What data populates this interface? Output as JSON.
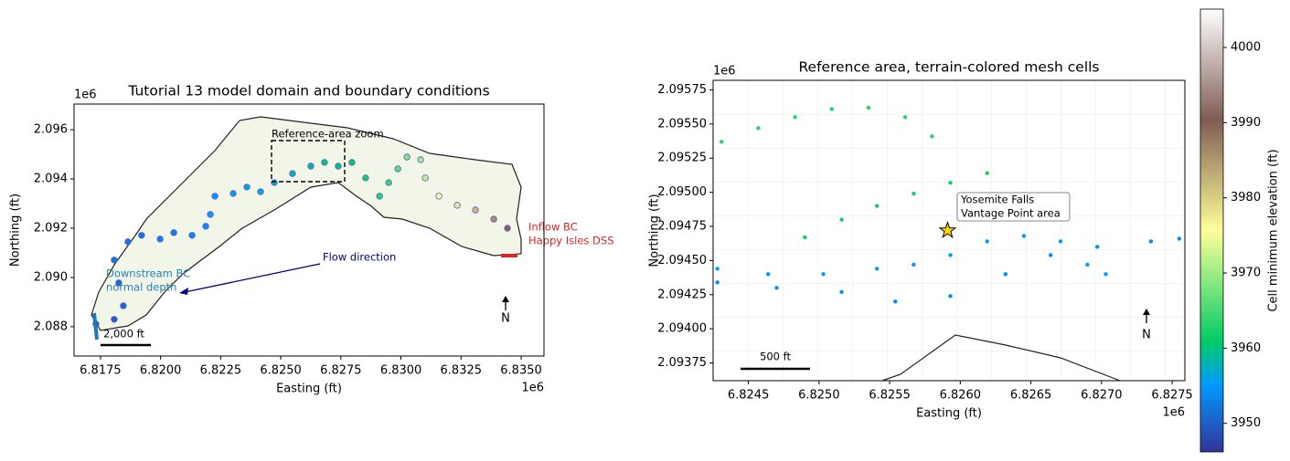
{
  "chart_data": [
    {
      "type": "scatter",
      "title": "Tutorial 13 model domain and boundary conditions",
      "xlabel": "Easting (ft)",
      "ylabel": "Northing (ft)",
      "x_offset_label": "1e6",
      "y_offset_label": "1e6",
      "xlim": [
        6.8164,
        6.83595
      ],
      "ylim": [
        2.08681,
        2.09704
      ],
      "xticks": [
        6.8175,
        {
          "value": 6.82,
          "label": "6.8200"
        },
        6.8225,
        {
          "value": 6.825,
          "label": "6.8250"
        },
        6.8275,
        {
          "value": 6.83,
          "label": "6.8300"
        },
        6.8325,
        {
          "value": 6.835,
          "label": "6.8350"
        }
      ],
      "yticks": [
        2.088,
        {
          "value": 2.09,
          "label": "2.090"
        },
        2.092,
        2.094,
        2.096
      ],
      "series": [
        {
          "x": [
            6.81731,
            6.81807,
            6.81845,
            6.81826,
            6.81807,
            6.81864,
            6.81921,
            6.81998,
            6.82055,
            6.82131,
            6.82188,
            6.82207,
            6.82226,
            6.82302,
            6.82359,
            6.82416,
            6.82473,
            6.82549,
            6.82625,
            6.82682,
            6.82739,
            6.82796,
            6.82853,
            6.82911,
            6.82949,
            6.82987,
            6.83025,
            6.83082,
            6.83101,
            6.83158,
            6.83234,
            6.8331,
            6.83386,
            6.83443
          ],
          "y": [
            2.08811,
            2.0883,
            2.08885,
            2.08978,
            2.09071,
            2.09145,
            2.09171,
            2.09156,
            2.09182,
            2.09171,
            2.09208,
            2.09256,
            2.0933,
            2.09341,
            2.09367,
            2.09348,
            2.09385,
            2.09422,
            2.09452,
            2.09467,
            2.09452,
            2.09467,
            2.09404,
            2.0933,
            2.09385,
            2.09441,
            2.09489,
            2.09478,
            2.09404,
            2.0933,
            2.09293,
            2.09274,
            2.09237,
            2.092
          ],
          "elevation": [
            3950,
            3950,
            3951,
            3951,
            3952,
            3952,
            3952,
            3953,
            3953,
            3954,
            3954,
            3955,
            3955,
            3956,
            3956,
            3957,
            3958,
            3958,
            3959,
            3960,
            3960,
            3961,
            3962,
            3963,
            3964,
            3966,
            3968,
            3970,
            3972,
            3975,
            3978,
            3982,
            3986,
            3990
          ]
        }
      ],
      "annotations": {
        "zoom": "Reference-area zoom",
        "flow": "Flow direction",
        "downstream": [
          "Downstream BC",
          "normal depth"
        ],
        "inflow": [
          "Inflow BC",
          "Happy Isles DSS"
        ],
        "scale": "2,000 ft",
        "north": "N"
      }
    },
    {
      "type": "scatter",
      "title": "Reference area, terrain-colored mesh cells",
      "xlabel": "Easting (ft)",
      "ylabel": "Northing (ft)",
      "x_offset_label": "1e6",
      "y_offset_label": "1e6",
      "xlim": [
        6.82425,
        6.82759
      ],
      "ylim": [
        2.09362,
        2.09582
      ],
      "xticks": [
        6.8245,
        {
          "value": 6.825,
          "label": "6.8250"
        },
        6.8255,
        {
          "value": 6.826,
          "label": "6.8260"
        },
        6.8265,
        {
          "value": 6.827,
          "label": "6.8270"
        },
        6.8275
      ],
      "yticks": [
        2.09375,
        {
          "value": 2.094,
          "label": "2.09400"
        },
        2.09425,
        {
          "value": 2.0945,
          "label": "2.09450"
        },
        2.09475,
        {
          "value": 2.095,
          "label": "2.09500"
        },
        2.09525,
        {
          "value": 2.0955,
          "label": "2.09550"
        },
        2.09575
      ],
      "series": [
        {
          "x": [
            6.82431,
            6.82457,
            6.82483,
            6.82509,
            6.82535,
            6.82561,
            6.8258,
            6.82428,
            6.82464,
            6.82503,
            6.82541,
            6.82567,
            6.82593,
            6.82619,
            6.82645,
            6.82671,
            6.8269,
            6.82703,
            6.82428,
            6.8247,
            6.82516,
            6.82554,
            6.82593,
            6.82632,
            6.82664,
            6.82697,
            6.82735,
            6.82755,
            6.8249,
            6.82516,
            6.82541,
            6.82567,
            6.82593,
            6.82619
          ],
          "y": [
            2.09537,
            2.09547,
            2.09555,
            2.09561,
            2.09562,
            2.09555,
            2.09541,
            2.09444,
            2.0944,
            2.0944,
            2.09444,
            2.09447,
            2.09454,
            2.09464,
            2.09468,
            2.09464,
            2.09447,
            2.0944,
            2.09434,
            2.0943,
            2.09427,
            2.0942,
            2.09424,
            2.0944,
            2.09454,
            2.0946,
            2.09464,
            2.09466,
            2.09467,
            2.0948,
            2.0949,
            2.09499,
            2.09507,
            2.09514
          ],
          "elevation": [
            3963,
            3963,
            3963,
            3963,
            3963,
            3963,
            3963,
            3955,
            3955,
            3955,
            3955,
            3955,
            3955,
            3955,
            3955,
            3955,
            3955,
            3955,
            3954,
            3954,
            3954,
            3954,
            3954,
            3954,
            3954,
            3954,
            3954,
            3954,
            3962,
            3962,
            3962,
            3962,
            3962,
            3962
          ]
        }
      ],
      "highlight_point": {
        "x": 6.82591,
        "y": 2.09472
      },
      "annotations": {
        "site": [
          "Yosemite Falls",
          "Vantage Point area"
        ],
        "scale": "500 ft",
        "north": "N"
      }
    },
    {
      "type": "colorbar",
      "label": "Cell minimum elevation (ft)",
      "clim": [
        3946.2,
        4005.1
      ],
      "ticks": [
        3950,
        3960,
        3970,
        3980,
        3990,
        4000
      ]
    }
  ]
}
